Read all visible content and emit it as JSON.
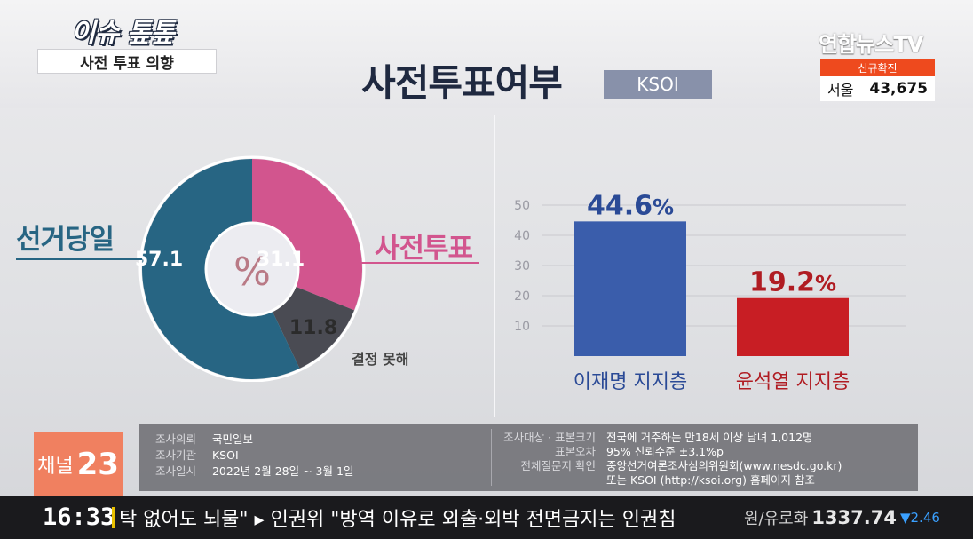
{
  "header": {
    "segment_logo": "이슈 톺톺",
    "topic": "사전 투표 의향",
    "title": "사전투표여부",
    "source_badge": "KSOI",
    "channel_logo": "연합뉴스TV",
    "cases_label": "신규확진",
    "cases_city": "서울",
    "cases_count": "43,675"
  },
  "chart_data": [
    {
      "type": "pie",
      "center_label": "%",
      "slices": [
        {
          "label": "사전투표",
          "value": 31.1,
          "value_label": "31.1",
          "color": "#d2558e"
        },
        {
          "label": "결정 못해",
          "value": 11.8,
          "value_label": "11.8",
          "color": "#4a4b53"
        },
        {
          "label": "선거당일",
          "value": 57.1,
          "value_label": "57.1",
          "color": "#276583"
        }
      ]
    },
    {
      "type": "bar",
      "categories": [
        "이재명 지지층",
        "윤석열 지지층"
      ],
      "values": [
        44.6,
        19.2
      ],
      "value_labels": [
        "44.6",
        "19.2"
      ],
      "value_unit": "%",
      "colors": [
        "#3a5dab",
        "#c81e24"
      ],
      "label_colors": [
        "#2a4a96",
        "#b01c22"
      ],
      "yticks": [
        "10",
        "20",
        "30",
        "40",
        "50"
      ],
      "ylim": [
        0,
        50
      ],
      "grid": true
    }
  ],
  "info": {
    "left": [
      {
        "key": "조사의뢰",
        "value": "국민일보"
      },
      {
        "key": "조사기관",
        "value": "KSOI"
      },
      {
        "key": "조사일시",
        "value": "2022년 2월 28일 ~ 3월 1일"
      }
    ],
    "right": [
      {
        "key": "조사대상 · 표본크기",
        "value": "전국에 거주하는 만18세 이상 남녀 1,012명"
      },
      {
        "key": "표본오차",
        "value": "95% 신뢰수준 ±3.1%p"
      },
      {
        "key": "전체질문지 확인",
        "value": "중앙선거여론조사심의위원회(www.nesdc.go.kr)"
      },
      {
        "key": "",
        "value": "또는 KSOI (http://ksoi.org) 홈페이지 참조"
      }
    ]
  },
  "channel_badge": {
    "label": "채널",
    "number": "23"
  },
  "ticker": {
    "time": "16:33",
    "text": "탁 없어도 뇌물\"  ▸ 인권위 \"방역 이유로 외출·외박 전면금지는 인권침",
    "market_label": "원/유로화",
    "market_value": "1337.74",
    "market_change": "▼2.46"
  }
}
